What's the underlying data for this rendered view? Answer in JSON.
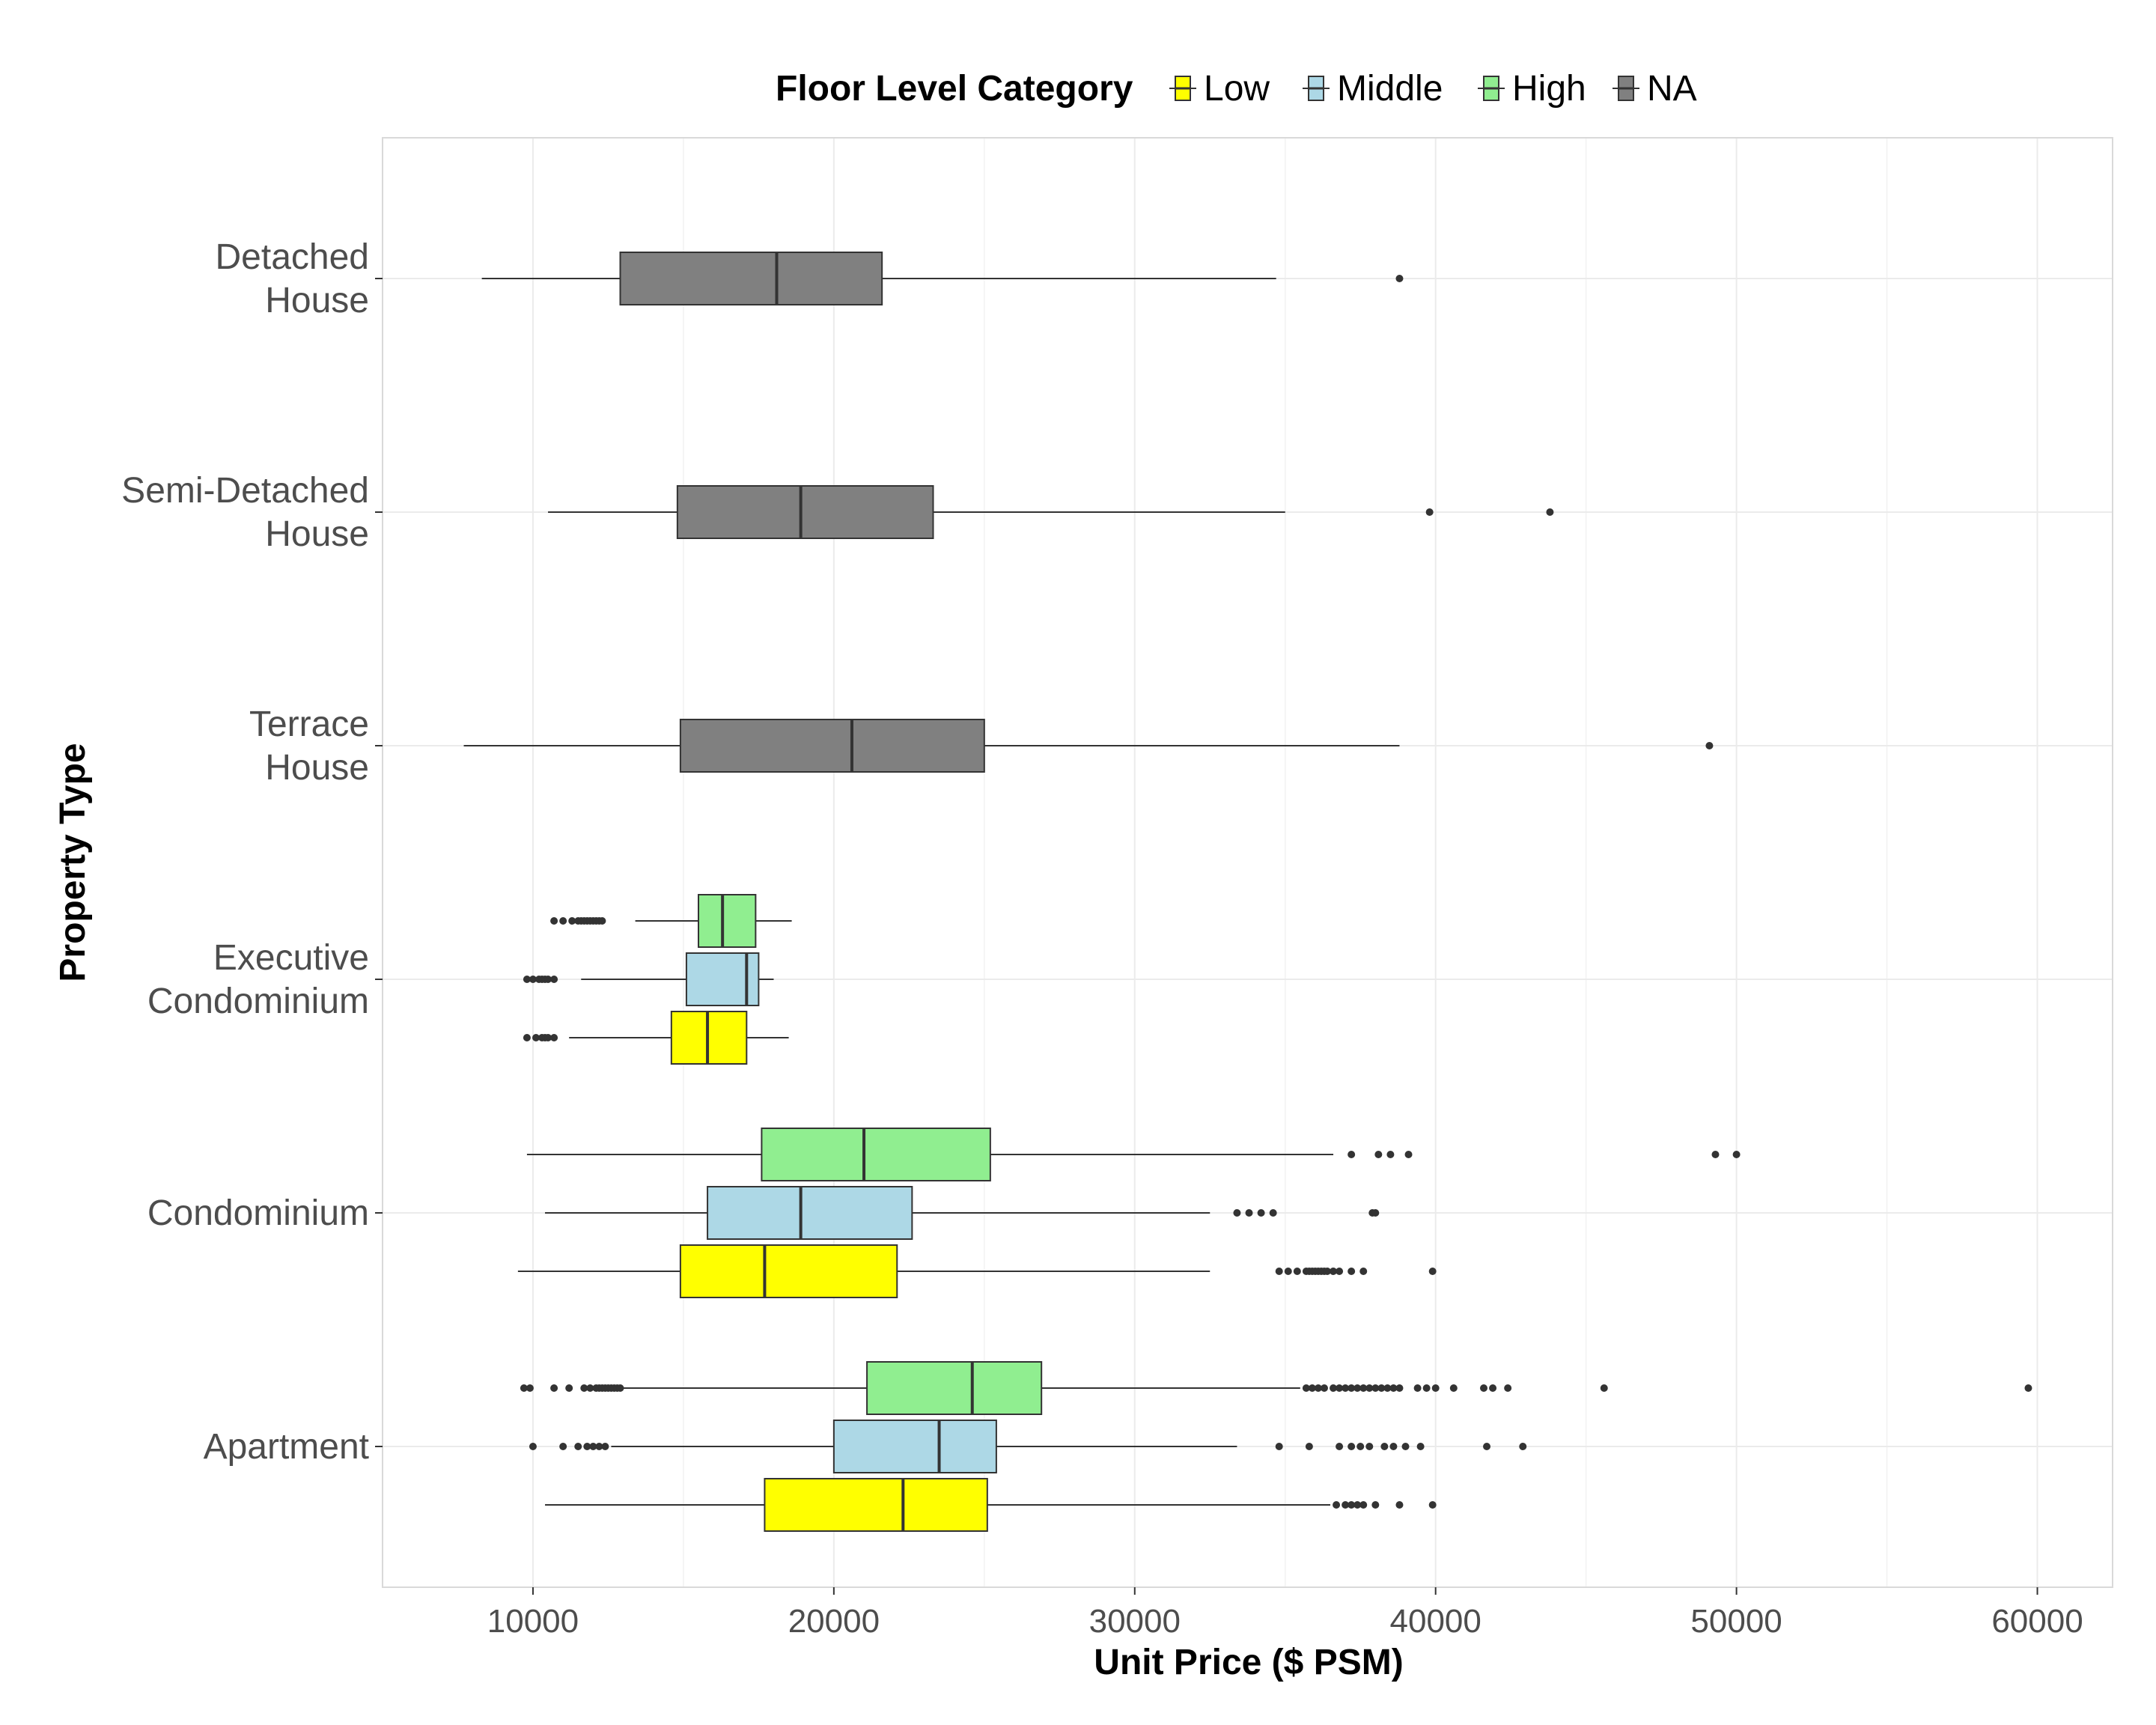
{
  "chart_data": {
    "type": "boxplot",
    "orientation": "horizontal",
    "xlabel": "Unit Price ($ PSM)",
    "ylabel": "Property Type",
    "xlim": [
      5000,
      62500
    ],
    "x_ticks": [
      10000,
      20000,
      30000,
      40000,
      50000,
      60000
    ],
    "x_tick_labels": [
      "10000",
      "20000",
      "30000",
      "40000",
      "50000",
      "60000"
    ],
    "grid": true,
    "legend": {
      "title": "Floor Level Category",
      "position": "top",
      "items": [
        {
          "name": "Low",
          "color": "#FFFF00"
        },
        {
          "name": "Middle",
          "color": "#ADD8E6"
        },
        {
          "name": "High",
          "color": "#90EE90"
        },
        {
          "name": "NA",
          "color": "#808080"
        }
      ]
    },
    "categories": [
      {
        "lines": [
          "Detached",
          "House"
        ]
      },
      {
        "lines": [
          "Semi-Detached",
          "House"
        ]
      },
      {
        "lines": [
          "Terrace",
          "House"
        ]
      },
      {
        "lines": [
          "Executive",
          "Condominium"
        ]
      },
      {
        "lines": [
          "Condominium"
        ]
      },
      {
        "lines": [
          "Apartment"
        ]
      }
    ],
    "boxes": [
      {
        "category": 0,
        "group": "NA",
        "whisker_low": 8300,
        "q1": 12900,
        "median": 18100,
        "q3": 21600,
        "whisker_high": 34700,
        "outliers": [
          38800
        ]
      },
      {
        "category": 1,
        "group": "NA",
        "whisker_low": 10500,
        "q1": 14800,
        "median": 18900,
        "q3": 23300,
        "whisker_high": 35000,
        "outliers": [
          39800,
          43800
        ]
      },
      {
        "category": 2,
        "group": "NA",
        "whisker_low": 7700,
        "q1": 14900,
        "median": 20600,
        "q3": 25000,
        "whisker_high": 38800,
        "outliers": [
          49100
        ]
      },
      {
        "category": 3,
        "group": "High",
        "whisker_low": 13400,
        "q1": 15500,
        "median": 16300,
        "q3": 17400,
        "whisker_high": 18600,
        "outliers": [
          10700,
          11000,
          11300,
          11500,
          11600,
          11700,
          11800,
          11900,
          12000,
          12100,
          12200,
          12300
        ]
      },
      {
        "category": 3,
        "group": "Middle",
        "whisker_low": 11600,
        "q1": 15100,
        "median": 17100,
        "q3": 17500,
        "whisker_high": 18000,
        "outliers": [
          9800,
          10000,
          10200,
          10300,
          10400,
          10500,
          10700
        ]
      },
      {
        "category": 3,
        "group": "Low",
        "whisker_low": 11200,
        "q1": 14600,
        "median": 15800,
        "q3": 17100,
        "whisker_high": 18500,
        "outliers": [
          9800,
          10100,
          10300,
          10400,
          10500,
          10700
        ]
      },
      {
        "category": 4,
        "group": "High",
        "whisker_low": 9800,
        "q1": 17600,
        "median": 21000,
        "q3": 25200,
        "whisker_high": 36600,
        "outliers": [
          37200,
          38100,
          38500,
          39100,
          49300,
          50000
        ]
      },
      {
        "category": 4,
        "group": "Middle",
        "whisker_low": 10400,
        "q1": 15800,
        "median": 18900,
        "q3": 22600,
        "whisker_high": 32500,
        "outliers": [
          33400,
          33800,
          34200,
          34600,
          37900,
          38000
        ]
      },
      {
        "category": 4,
        "group": "Low",
        "whisker_low": 9500,
        "q1": 14900,
        "median": 17700,
        "q3": 22100,
        "whisker_high": 32500,
        "outliers": [
          34800,
          35100,
          35400,
          35700,
          35800,
          35900,
          36000,
          36100,
          36200,
          36300,
          36400,
          36600,
          36800,
          37200,
          37600,
          39900
        ]
      },
      {
        "category": 5,
        "group": "High",
        "whisker_low": 13000,
        "q1": 21100,
        "median": 24600,
        "q3": 26900,
        "whisker_high": 35500,
        "outliers": [
          9700,
          9900,
          10700,
          11200,
          11700,
          11900,
          12100,
          12200,
          12300,
          12400,
          12500,
          12600,
          12700,
          12800,
          12900,
          35700,
          35900,
          36100,
          36300,
          36600,
          36800,
          37000,
          37200,
          37400,
          37600,
          37800,
          38000,
          38200,
          38400,
          38600,
          38800,
          39400,
          39700,
          40000,
          40600,
          41600,
          41900,
          42400,
          45600,
          59700
        ]
      },
      {
        "category": 5,
        "group": "Middle",
        "whisker_low": 12600,
        "q1": 20000,
        "median": 23500,
        "q3": 25400,
        "whisker_high": 33400,
        "outliers": [
          10000,
          11000,
          11500,
          11800,
          12000,
          12200,
          12400,
          34800,
          35800,
          36800,
          37200,
          37500,
          37800,
          38300,
          38600,
          39000,
          39500,
          41700,
          42900
        ]
      },
      {
        "category": 5,
        "group": "Low",
        "whisker_low": 10400,
        "q1": 17700,
        "median": 22300,
        "q3": 25100,
        "whisker_high": 36500,
        "outliers": [
          36700,
          37000,
          37200,
          37400,
          37600,
          38000,
          38800,
          39900
        ]
      }
    ]
  }
}
